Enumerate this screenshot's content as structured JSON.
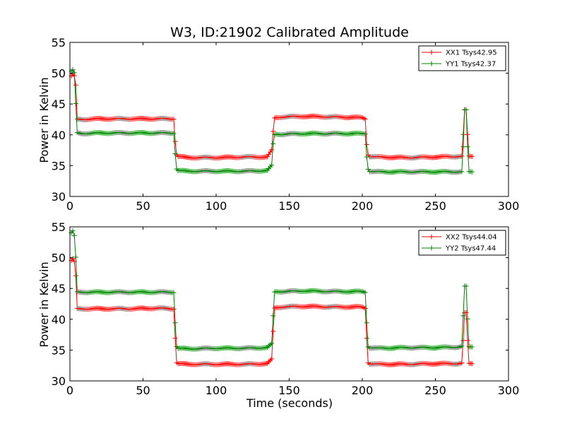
{
  "chart_data": [
    {
      "type": "line",
      "title": "W3, ID:21902 Calibrated Amplitude",
      "xlabel": "",
      "ylabel": "Power in Kelvin",
      "xlim": [
        0,
        300
      ],
      "ylim": [
        30,
        55
      ],
      "xticks": [
        "0",
        "50",
        "100",
        "150",
        "200",
        "250",
        "300"
      ],
      "yticks": [
        "30",
        "35",
        "40",
        "45",
        "50",
        "55"
      ],
      "grid": false,
      "legend_position": "top-right",
      "series": [
        {
          "name": "XX1 Tsys42.95",
          "color": "#ff0000",
          "x": [
            1,
            2,
            3,
            4,
            5,
            8,
            20,
            40,
            60,
            71,
            72,
            73,
            74,
            80,
            100,
            120,
            135,
            138,
            139,
            140,
            141,
            145,
            160,
            180,
            200,
            202,
            203,
            204,
            205,
            210,
            230,
            250,
            266,
            268,
            269,
            270,
            271,
            272,
            273,
            275
          ],
          "y": [
            49.5,
            49.8,
            49.5,
            48.0,
            42.5,
            42.5,
            42.6,
            42.6,
            42.6,
            42.6,
            39.0,
            36.8,
            36.5,
            36.3,
            36.3,
            36.4,
            36.4,
            37.5,
            40.5,
            42.7,
            42.8,
            42.9,
            43.0,
            42.9,
            42.8,
            42.6,
            38.5,
            36.8,
            36.5,
            36.4,
            36.3,
            36.4,
            36.5,
            36.5,
            40.0,
            44.0,
            44.0,
            40.0,
            36.5,
            36.5
          ]
        },
        {
          "name": "YY1 Tsys42.37",
          "color": "#008000",
          "x": [
            1,
            2,
            3,
            4,
            5,
            8,
            20,
            40,
            60,
            71,
            72,
            73,
            74,
            80,
            100,
            120,
            135,
            138,
            139,
            140,
            141,
            145,
            160,
            180,
            200,
            202,
            203,
            204,
            205,
            210,
            230,
            250,
            266,
            268,
            269,
            270,
            271,
            272,
            273,
            275
          ],
          "y": [
            50.3,
            50.5,
            50.0,
            45.0,
            40.3,
            40.2,
            40.3,
            40.3,
            40.3,
            40.3,
            37.0,
            34.5,
            34.2,
            34.1,
            34.1,
            34.1,
            34.2,
            35.0,
            38.5,
            40.0,
            40.1,
            40.1,
            40.2,
            40.2,
            40.2,
            40.2,
            36.5,
            34.5,
            34.1,
            34.0,
            34.0,
            34.0,
            34.0,
            34.0,
            38.0,
            44.0,
            44.0,
            38.0,
            34.0,
            34.0
          ]
        }
      ]
    },
    {
      "type": "line",
      "title": "",
      "xlabel": "Time (seconds)",
      "ylabel": "Power in Kelvin",
      "xlim": [
        0,
        300
      ],
      "ylim": [
        30,
        55
      ],
      "xticks": [
        "0",
        "50",
        "100",
        "150",
        "200",
        "250",
        "300"
      ],
      "yticks": [
        "30",
        "35",
        "40",
        "45",
        "50",
        "55"
      ],
      "grid": false,
      "legend_position": "top-right",
      "series": [
        {
          "name": "XX2 Tsys44.04",
          "color": "#ff0000",
          "x": [
            1,
            2,
            3,
            4,
            5,
            8,
            20,
            40,
            60,
            71,
            72,
            73,
            74,
            80,
            100,
            120,
            135,
            138,
            139,
            140,
            141,
            145,
            160,
            180,
            200,
            202,
            203,
            204,
            205,
            210,
            230,
            250,
            266,
            268,
            269,
            270,
            271,
            272,
            273,
            275
          ],
          "y": [
            49.5,
            49.8,
            49.3,
            47.0,
            41.7,
            41.7,
            41.7,
            41.7,
            41.8,
            41.7,
            37.0,
            33.0,
            32.8,
            32.7,
            32.7,
            32.7,
            32.8,
            33.5,
            38.0,
            41.8,
            41.9,
            42.0,
            42.1,
            42.0,
            42.0,
            41.8,
            37.0,
            33.0,
            32.8,
            32.7,
            32.7,
            32.8,
            32.8,
            32.9,
            36.5,
            41.0,
            41.0,
            36.5,
            32.8,
            32.8
          ]
        },
        {
          "name": "YY2 Tsys47.44",
          "color": "#008000",
          "x": [
            1,
            2,
            3,
            4,
            5,
            8,
            20,
            40,
            60,
            71,
            72,
            73,
            74,
            80,
            100,
            120,
            135,
            138,
            139,
            140,
            141,
            145,
            160,
            180,
            200,
            202,
            203,
            204,
            205,
            210,
            230,
            250,
            266,
            268,
            269,
            270,
            271,
            272,
            273,
            275
          ],
          "y": [
            54.0,
            54.3,
            53.5,
            50.0,
            44.4,
            44.4,
            44.4,
            44.4,
            44.4,
            44.4,
            39.5,
            35.6,
            35.3,
            35.2,
            35.3,
            35.3,
            35.4,
            36.0,
            40.5,
            44.4,
            44.5,
            44.5,
            44.6,
            44.5,
            44.5,
            44.4,
            39.5,
            35.6,
            35.4,
            35.3,
            35.4,
            35.4,
            35.5,
            35.6,
            40.5,
            45.3,
            45.3,
            40.0,
            35.5,
            35.5
          ]
        }
      ]
    }
  ]
}
